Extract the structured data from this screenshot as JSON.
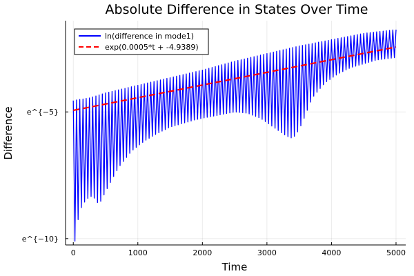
{
  "chart_data": {
    "type": "line",
    "title": "Absolute Difference in States Over Time",
    "xlabel": "Time",
    "ylabel": "Difference",
    "xlim": [
      -120,
      5150
    ],
    "ylim": [
      -10.25,
      -1.4
    ],
    "y_scale": "log (natural), axis shows ln values",
    "xticks": [
      {
        "value": 0,
        "label": "0"
      },
      {
        "value": 1000,
        "label": "1000"
      },
      {
        "value": 2000,
        "label": "2000"
      },
      {
        "value": 3000,
        "label": "3000"
      },
      {
        "value": 4000,
        "label": "4000"
      },
      {
        "value": 5000,
        "label": "5000"
      }
    ],
    "yticks": [
      {
        "value": -5,
        "label": "e^{−5}"
      },
      {
        "value": -10,
        "label": "e^{−10}"
      }
    ],
    "grid": true,
    "legend_position": "top-left",
    "series": [
      {
        "name": "ln(difference in mode1)",
        "color": "#0000ff",
        "style": "solid",
        "oscillation_period": 50,
        "upper_envelope": [
          [
            0,
            -4.55
          ],
          [
            250,
            -4.45
          ],
          [
            500,
            -4.25
          ],
          [
            1000,
            -3.95
          ],
          [
            1500,
            -3.65
          ],
          [
            2000,
            -3.35
          ],
          [
            2500,
            -3.0
          ],
          [
            3000,
            -2.7
          ],
          [
            3500,
            -2.4
          ],
          [
            4000,
            -2.15
          ],
          [
            4500,
            -1.9
          ],
          [
            5000,
            -1.75
          ]
        ],
        "lower_envelope": [
          [
            20,
            -10.2
          ],
          [
            60,
            -9.4
          ],
          [
            120,
            -8.8
          ],
          [
            200,
            -8.45
          ],
          [
            300,
            -8.3
          ],
          [
            350,
            -8.5
          ],
          [
            400,
            -8.65
          ],
          [
            450,
            -8.4
          ],
          [
            550,
            -7.9
          ],
          [
            700,
            -7.2
          ],
          [
            900,
            -6.55
          ],
          [
            1100,
            -6.15
          ],
          [
            1300,
            -5.85
          ],
          [
            1500,
            -5.6
          ],
          [
            1700,
            -5.45
          ],
          [
            1900,
            -5.3
          ],
          [
            2100,
            -5.2
          ],
          [
            2300,
            -5.1
          ],
          [
            2500,
            -5.0
          ],
          [
            2700,
            -5.05
          ],
          [
            2900,
            -5.25
          ],
          [
            3100,
            -5.6
          ],
          [
            3300,
            -5.95
          ],
          [
            3400,
            -6.05
          ],
          [
            3500,
            -5.7
          ],
          [
            3600,
            -5.1
          ],
          [
            3700,
            -4.45
          ],
          [
            3900,
            -3.85
          ],
          [
            4100,
            -3.5
          ],
          [
            4300,
            -3.25
          ],
          [
            4500,
            -3.1
          ],
          [
            4700,
            -2.95
          ],
          [
            5000,
            -2.85
          ]
        ]
      },
      {
        "name": "exp(0.0005*t + -4.9389)",
        "color": "#ff0000",
        "style": "dashed",
        "slope": 0.0005,
        "intercept": -4.9389
      }
    ]
  }
}
